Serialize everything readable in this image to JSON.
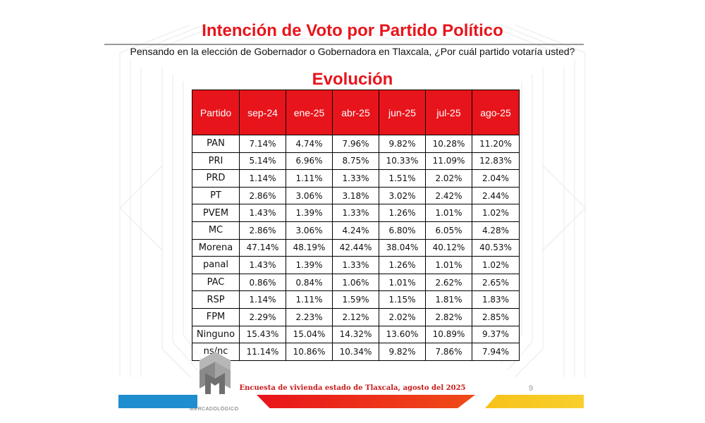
{
  "title": "Intención de Voto por Partido Político",
  "question": "Pensando en la elección de Gobernador o Gobernadora en Tlaxcala, ¿Por cuál partido votaría usted?",
  "subheading": "Evolución",
  "table": {
    "headers": [
      "Partido",
      "sep-24",
      "ene-25",
      "abr-25",
      "jun-25",
      "jul-25",
      "ago-25"
    ],
    "rows": [
      [
        "PAN",
        "7.14%",
        "4.74%",
        "7.96%",
        "9.82%",
        "10.28%",
        "11.20%"
      ],
      [
        "PRI",
        "5.14%",
        "6.96%",
        "8.75%",
        "10.33%",
        "11.09%",
        "12.83%"
      ],
      [
        "PRD",
        "1.14%",
        "1.11%",
        "1.33%",
        "1.51%",
        "2.02%",
        "2.04%"
      ],
      [
        "PT",
        "2.86%",
        "3.06%",
        "3.18%",
        "3.02%",
        "2.42%",
        "2.44%"
      ],
      [
        "PVEM",
        "1.43%",
        "1.39%",
        "1.33%",
        "1.26%",
        "1.01%",
        "1.02%"
      ],
      [
        "MC",
        "2.86%",
        "3.06%",
        "4.24%",
        "6.80%",
        "6.05%",
        "4.28%"
      ],
      [
        "Morena",
        "47.14%",
        "48.19%",
        "42.44%",
        "38.04%",
        "40.12%",
        "40.53%"
      ],
      [
        "panal",
        "1.43%",
        "1.39%",
        "1.33%",
        "1.26%",
        "1.01%",
        "1.02%"
      ],
      [
        "PAC",
        "0.86%",
        "0.84%",
        "1.06%",
        "1.01%",
        "2.62%",
        "2.65%"
      ],
      [
        "RSP",
        "1.14%",
        "1.11%",
        "1.59%",
        "1.15%",
        "1.81%",
        "1.83%"
      ],
      [
        "FPM",
        "2.29%",
        "2.23%",
        "2.12%",
        "2.02%",
        "2.82%",
        "2.85%"
      ],
      [
        "Ninguno",
        "15.43%",
        "15.04%",
        "14.32%",
        "13.60%",
        "10.89%",
        "9.37%"
      ],
      [
        "ns/nc",
        "11.14%",
        "10.86%",
        "10.34%",
        "9.82%",
        "7.86%",
        "7.94%"
      ]
    ]
  },
  "footer": {
    "source": "Encuesta de vivienda estado de Tlaxcala, agosto del 2025",
    "page_number": "9",
    "logo_text": "MERCADOLÓGICO"
  },
  "colors": {
    "accent_red": "#e8141b",
    "footer_blue": "#1f8ed0",
    "footer_yellow": "#f7c21a"
  }
}
